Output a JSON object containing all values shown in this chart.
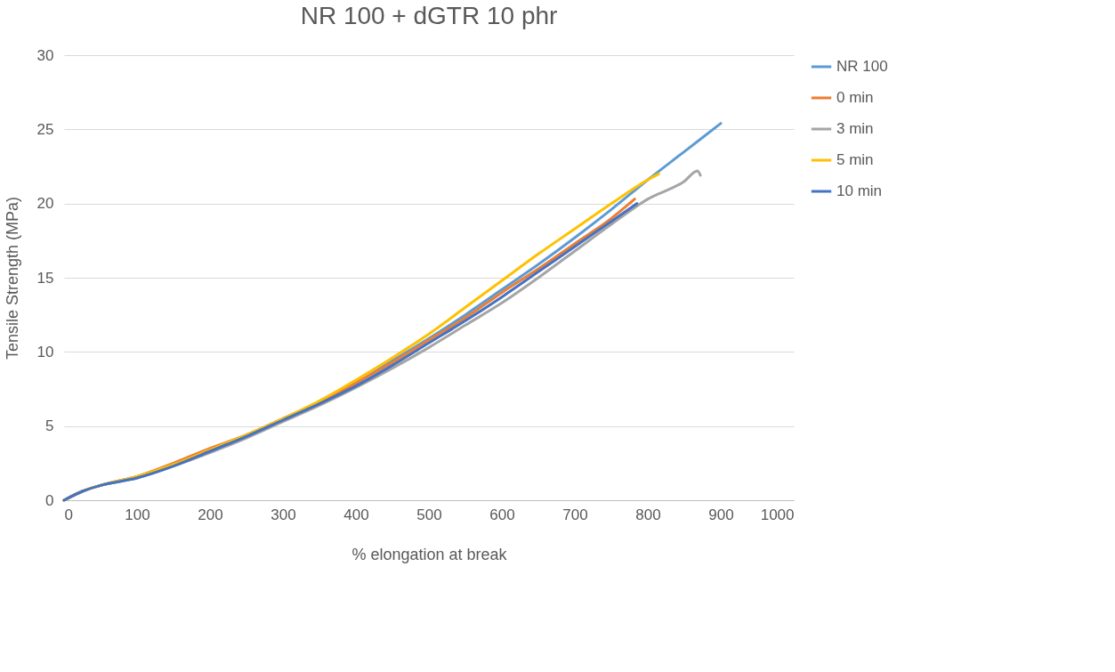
{
  "chart_data": {
    "type": "line",
    "title": "NR 100 + dGTR 10 phr",
    "xlabel": "% elongation at break",
    "ylabel": "Tensile Strength (MPa)",
    "xlim": [
      0,
      1000
    ],
    "xticks": [
      0,
      100,
      200,
      300,
      400,
      500,
      600,
      700,
      800,
      900,
      1000
    ],
    "ylim": [
      0,
      30
    ],
    "yticks": [
      0,
      5,
      10,
      15,
      20,
      25,
      30
    ],
    "grid": "y",
    "legend": "right",
    "marker": "none",
    "line_style": "solid",
    "series": [
      {
        "name": "NR 100",
        "color": "#5b9bd5",
        "x": [
          0,
          25,
          50,
          100,
          150,
          200,
          250,
          300,
          350,
          400,
          450,
          500,
          550,
          600,
          650,
          700,
          750,
          800,
          850,
          900
        ],
        "values": [
          0,
          0.6,
          1.0,
          1.6,
          2.4,
          3.4,
          4.4,
          5.5,
          6.6,
          7.9,
          9.4,
          10.9,
          12.5,
          14.2,
          15.9,
          17.7,
          19.6,
          21.6,
          23.5,
          25.4
        ]
      },
      {
        "name": "0 min",
        "color": "#ed7d31",
        "x": [
          0,
          25,
          50,
          100,
          150,
          200,
          250,
          300,
          350,
          400,
          450,
          500,
          550,
          600,
          650,
          700,
          750,
          782
        ],
        "values": [
          0,
          0.6,
          1.0,
          1.6,
          2.5,
          3.5,
          4.4,
          5.5,
          6.6,
          7.9,
          9.3,
          10.8,
          12.3,
          14.0,
          15.6,
          17.3,
          19.0,
          20.3
        ]
      },
      {
        "name": "3 min",
        "color": "#a5a5a5",
        "x": [
          0,
          25,
          50,
          100,
          150,
          200,
          250,
          300,
          350,
          400,
          450,
          500,
          550,
          600,
          650,
          700,
          750,
          800,
          850,
          868,
          872
        ],
        "values": [
          0,
          0.6,
          1.0,
          1.5,
          2.3,
          3.2,
          4.2,
          5.3,
          6.4,
          7.6,
          8.9,
          10.3,
          11.8,
          13.3,
          15.0,
          16.8,
          18.6,
          20.3,
          21.5,
          22.2,
          21.9
        ]
      },
      {
        "name": "5 min",
        "color": "#ffc000",
        "x": [
          0,
          25,
          50,
          100,
          150,
          200,
          250,
          300,
          350,
          400,
          450,
          500,
          550,
          600,
          650,
          700,
          750,
          800,
          815
        ],
        "values": [
          0,
          0.6,
          1.0,
          1.6,
          2.4,
          3.4,
          4.4,
          5.5,
          6.7,
          8.1,
          9.6,
          11.2,
          13.0,
          14.8,
          16.6,
          18.3,
          20.0,
          21.6,
          22.0
        ]
      },
      {
        "name": "10 min",
        "color": "#4472c4",
        "x": [
          0,
          25,
          50,
          100,
          150,
          200,
          250,
          300,
          350,
          400,
          450,
          500,
          550,
          600,
          650,
          700,
          750,
          785
        ],
        "values": [
          0,
          0.6,
          1.0,
          1.5,
          2.3,
          3.3,
          4.3,
          5.4,
          6.5,
          7.7,
          9.1,
          10.6,
          12.1,
          13.7,
          15.4,
          17.1,
          18.8,
          20.0
        ]
      }
    ]
  }
}
